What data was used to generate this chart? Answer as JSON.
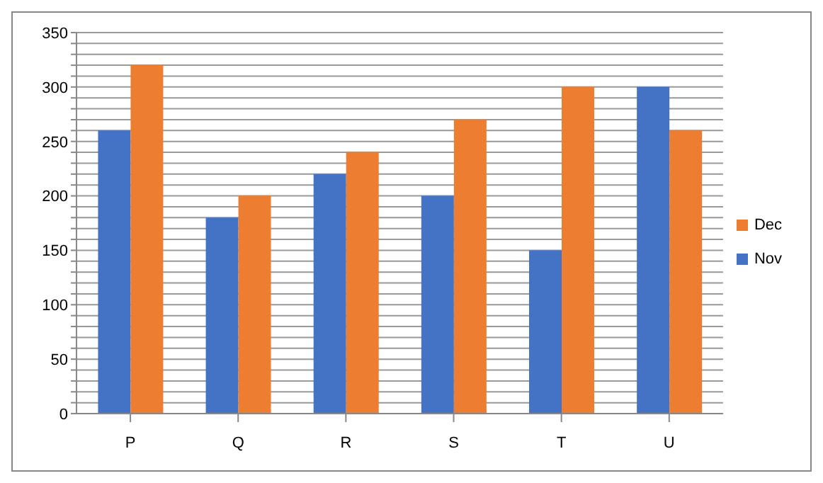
{
  "chart_data": {
    "type": "bar",
    "categories": [
      "P",
      "Q",
      "R",
      "S",
      "T",
      "U"
    ],
    "series": [
      {
        "name": "Nov",
        "color": "#4472c4",
        "values": [
          260,
          180,
          220,
          200,
          150,
          300
        ]
      },
      {
        "name": "Dec",
        "color": "#ed7d31",
        "values": [
          320,
          200,
          240,
          270,
          300,
          260
        ]
      }
    ],
    "ylim": [
      0,
      350
    ],
    "yticks": [
      0,
      {
        "value": 10,
        "label": null
      },
      {
        "value": 20,
        "label": null
      },
      {
        "value": 30,
        "label": null
      },
      {
        "value": 40,
        "label": null
      },
      50,
      {
        "value": 60,
        "label": null
      },
      {
        "value": 70,
        "label": null
      },
      {
        "value": 80,
        "label": null
      },
      {
        "value": 90,
        "label": null
      },
      100,
      {
        "value": 110,
        "label": null
      },
      {
        "value": 120,
        "label": null
      },
      {
        "value": 130,
        "label": null
      },
      {
        "value": 140,
        "label": null
      },
      150,
      {
        "value": 160,
        "label": null
      },
      {
        "value": 170,
        "label": null
      },
      {
        "value": 180,
        "label": null
      },
      {
        "value": 190,
        "label": null
      },
      200,
      {
        "value": 210,
        "label": null
      },
      {
        "value": 220,
        "label": null
      },
      {
        "value": 230,
        "label": null
      },
      {
        "value": 240,
        "label": null
      },
      250,
      {
        "value": 260,
        "label": null
      },
      {
        "value": 270,
        "label": null
      },
      {
        "value": 280,
        "label": null
      },
      {
        "value": 290,
        "label": null
      },
      300,
      {
        "value": 310,
        "label": null
      },
      {
        "value": 320,
        "label": null
      },
      {
        "value": 330,
        "label": null
      },
      {
        "value": 340,
        "label": null
      },
      350
    ],
    "grid": "y",
    "legend": "right"
  }
}
